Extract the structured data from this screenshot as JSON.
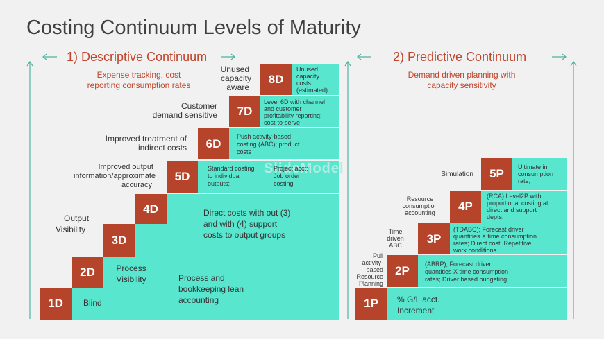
{
  "title": "Costing Continuum Levels of Maturity",
  "descriptive": {
    "heading": "1) Descriptive Continuum",
    "subtitle_line1": "Expense tracking, cost",
    "subtitle_line2": "reporting consumption rates",
    "levels": [
      {
        "code": "1D",
        "label": "Blind",
        "desc_line1": "Process and",
        "desc_line2": "bookkeeping lean",
        "desc_line3": "accounting"
      },
      {
        "code": "2D",
        "label_line1": "Process",
        "label_line2": "Visibility"
      },
      {
        "code": "3D",
        "label_line1": "Output",
        "label_line2": "Visibility"
      },
      {
        "code": "4D",
        "desc_line1": "Direct costs with out (3)",
        "desc_line2": "and with (4) support",
        "desc_line3": "costs to output groups"
      },
      {
        "code": "5D",
        "label_line1": "Improved output",
        "label_line2": "information/approximate",
        "label_line3": "accuracy",
        "desc_a_line1": "Standard costing",
        "desc_a_line2": "to individual",
        "desc_a_line3": "outputs;",
        "desc_b_line1": "Project acct;",
        "desc_b_line2": "Job order",
        "desc_b_line3": "costing"
      },
      {
        "code": "6D",
        "label_line1": "Improved treatment of",
        "label_line2": "indirect costs",
        "desc_line1": "Push activity-based",
        "desc_line2": "costing (ABC); product",
        "desc_line3": "costs"
      },
      {
        "code": "7D",
        "label_line1": "Customer",
        "label_line2": "demand sensitive",
        "desc_line1": "Level 6D with channel",
        "desc_line2": "and customer",
        "desc_line3": "profitability reporting;",
        "desc_line4": "cost-to-serve"
      },
      {
        "code": "8D",
        "label_line1": "Unused",
        "label_line2": "capacity",
        "label_line3": "aware",
        "desc_line1": "Unused",
        "desc_line2": "capacity",
        "desc_line3": "costs",
        "desc_line4": "(estimated)"
      }
    ]
  },
  "predictive": {
    "heading": "2) Predictive Continuum",
    "subtitle_line1": "Demand driven planning with",
    "subtitle_line2": "capacity sensitivity",
    "levels": [
      {
        "code": "1P",
        "desc_line1": "% G/L acct.",
        "desc_line2": "Increment"
      },
      {
        "code": "2P",
        "label_line1": "Pull",
        "label_line2": "activity-",
        "label_line3": "based",
        "label_line4": "Resource",
        "label_line5": "Planning",
        "desc_line1": "(ABRP); Forecast driver",
        "desc_line2": "quantities X time consumption",
        "desc_line3": "rates; Driver based budgeting"
      },
      {
        "code": "3P",
        "label_line1": "Time",
        "label_line2": "driven",
        "label_line3": "ABC",
        "desc_line1": "(TDABC); Forecast driver",
        "desc_line2": "quantities X time consumption",
        "desc_line3": "rates; Direct cost. Repetitive",
        "desc_line4": "work conditions"
      },
      {
        "code": "4P",
        "label_line1": "Resource",
        "label_line2": "consumption",
        "label_line3": "accounting",
        "desc_line1": "(RCA) Level2P with",
        "desc_line2": "proportional costing at",
        "desc_line3": "direct and support",
        "desc_line4": "depts."
      },
      {
        "code": "5P",
        "label": "Simulation",
        "desc_line1": "Ultimate in",
        "desc_line2": "consumption",
        "desc_line3": "rate;"
      }
    ]
  },
  "watermark": "SlideModel",
  "colors": {
    "teal": "#58e6cf",
    "level_box": "#b5442b",
    "heading": "#c0452b",
    "arrow": "#4fb3a1"
  }
}
